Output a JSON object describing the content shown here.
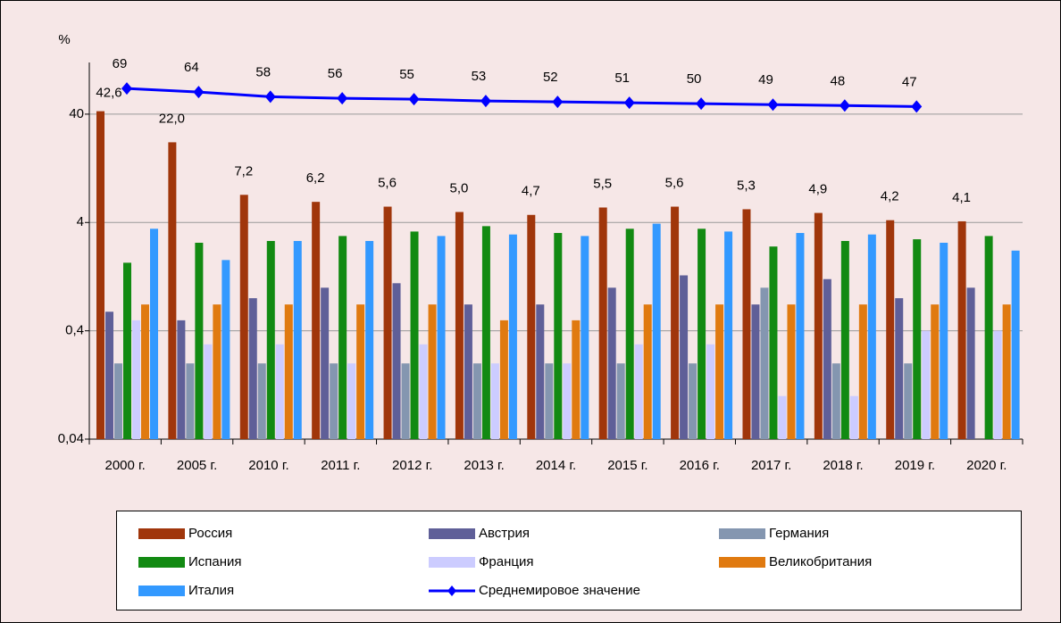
{
  "chart_data": {
    "type": "bar",
    "y_label": "%",
    "log_scale": true,
    "grid": true,
    "legend_position": "bottom",
    "categories": [
      "2000 г.",
      "2005 г.",
      "2010 г.",
      "2011 г.",
      "2012 г.",
      "2013 г.",
      "2014 г.",
      "2015 г.",
      "2016 г.",
      "2017 г.",
      "2018 г.",
      "2019 г.",
      "2020 г."
    ],
    "ylim": [
      0.04,
      120
    ],
    "yticks": [
      {
        "value": 0.04,
        "label": "0,04"
      },
      {
        "value": 0.4,
        "label": "0,4"
      },
      4,
      40
    ],
    "series": [
      {
        "name": "Россия",
        "color": "#a0360b",
        "values": [
          42.6,
          22.0,
          7.2,
          6.2,
          5.6,
          5.0,
          4.7,
          5.5,
          5.6,
          5.3,
          4.9,
          4.2,
          4.1
        ],
        "value_labels": [
          "42,6",
          "22,0",
          "7,2",
          "6,2",
          "5,6",
          "5,0",
          "4,7",
          "5,5",
          "5,6",
          "5,3",
          "4,9",
          "4,2",
          "4,1"
        ]
      },
      {
        "name": "Австрия",
        "color": "#5f5f98",
        "values": [
          0.6,
          0.5,
          0.8,
          1.0,
          1.1,
          0.7,
          0.7,
          1.0,
          1.3,
          0.7,
          1.2,
          0.8,
          1.0
        ]
      },
      {
        "name": "Германия",
        "color": "#8496b0",
        "values": [
          0.2,
          0.2,
          0.2,
          0.2,
          0.2,
          0.2,
          0.2,
          0.2,
          0.2,
          1.0,
          0.2,
          0.2,
          null
        ]
      },
      {
        "name": "Испания",
        "color": "#128a12",
        "values": [
          1.7,
          2.6,
          2.7,
          3.0,
          3.3,
          3.7,
          3.2,
          3.5,
          3.5,
          2.4,
          2.7,
          2.8,
          3.0
        ]
      },
      {
        "name": "Франция",
        "color": "#ccccff",
        "values": [
          0.5,
          0.3,
          0.3,
          0.2,
          0.3,
          0.2,
          0.2,
          0.3,
          0.3,
          0.1,
          0.1,
          0.4,
          0.4
        ]
      },
      {
        "name": "Великобритания",
        "color": "#e07a10",
        "values": [
          0.7,
          0.7,
          0.7,
          0.7,
          0.7,
          0.5,
          0.5,
          0.7,
          0.7,
          0.7,
          0.7,
          0.7,
          0.7
        ]
      },
      {
        "name": "Италия",
        "color": "#3399ff",
        "values": [
          3.5,
          1.8,
          2.7,
          2.7,
          3.0,
          3.1,
          3.0,
          3.9,
          3.3,
          3.2,
          3.1,
          2.6,
          2.2
        ]
      },
      {
        "name": "Среднемировое значение",
        "color": "#0000ff",
        "type": "line",
        "values": [
          69,
          64,
          58,
          56,
          55,
          53,
          52,
          51,
          50,
          49,
          48,
          47,
          null
        ]
      }
    ]
  }
}
